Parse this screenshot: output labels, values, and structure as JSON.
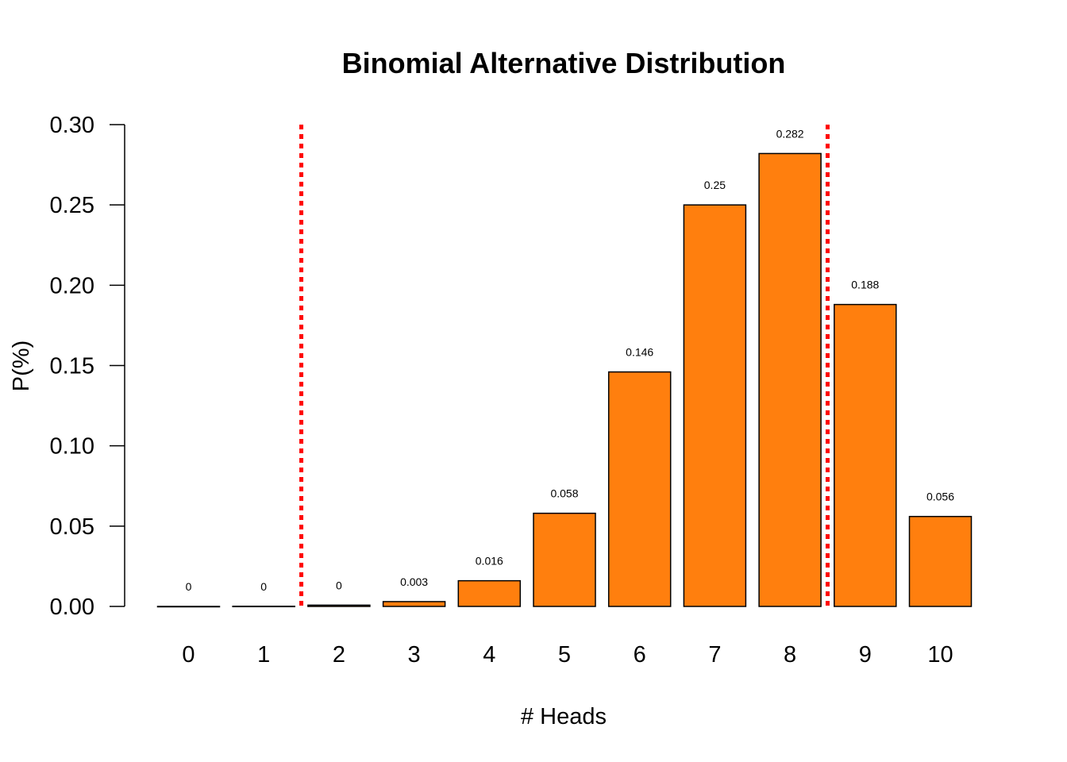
{
  "chart_data": {
    "type": "bar",
    "title": "Binomial Alternative Distribution",
    "xlabel": "# Heads",
    "ylabel": "P(%)",
    "categories": [
      "0",
      "1",
      "2",
      "3",
      "4",
      "5",
      "6",
      "7",
      "8",
      "9",
      "10"
    ],
    "values": [
      0.0,
      0.0001,
      0.0008,
      0.003,
      0.016,
      0.058,
      0.146,
      0.25,
      0.282,
      0.188,
      0.056
    ],
    "data_labels": [
      "0",
      "0",
      "0",
      "0.003",
      "0.016",
      "0.058",
      "0.146",
      "0.25",
      "0.282",
      "0.188",
      "0.056"
    ],
    "ylim": [
      0,
      0.3
    ],
    "yticks": [
      "0.00",
      "0.05",
      "0.10",
      "0.15",
      "0.20",
      "0.25",
      "0.30"
    ],
    "ytick_values": [
      0,
      0.05,
      0.1,
      0.15,
      0.2,
      0.25,
      0.3
    ],
    "grid": false,
    "bar_color": "#FF7F0E",
    "bar_edge_color": "#000000",
    "reference_lines": [
      {
        "x_between": [
          "1",
          "2"
        ],
        "color": "#FF0000",
        "style": "dotted"
      },
      {
        "x_between": [
          "8",
          "9"
        ],
        "color": "#FF0000",
        "style": "dotted"
      }
    ]
  }
}
